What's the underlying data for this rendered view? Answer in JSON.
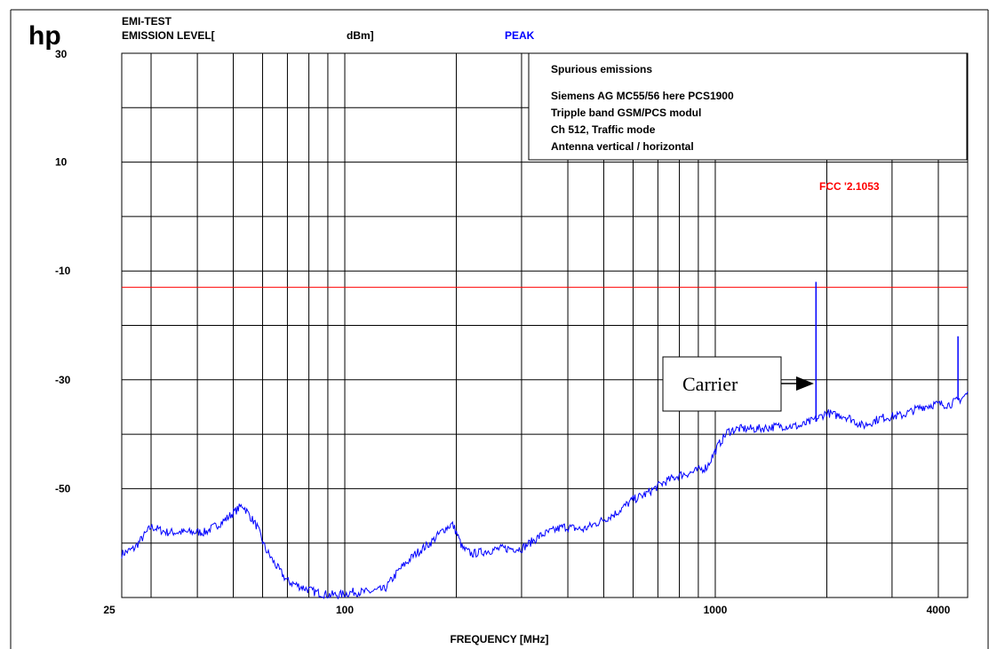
{
  "logo": "hp",
  "header": {
    "test_name": "EMI-TEST",
    "level_label": "EMISSION LEVEL[",
    "unit_label": "dBm]",
    "detector": "PEAK"
  },
  "info_box": {
    "title": "Spurious emissions",
    "lines": [
      "Siemens AG MC55/56 here PCS1900",
      "Tripple band GSM/PCS modul",
      "Ch 512, Traffic mode",
      "Antenna vertical / horizontal"
    ]
  },
  "annotation": {
    "carrier_label": "Carrier"
  },
  "colors": {
    "trace": "#0000ff",
    "limit": "#ff0000",
    "detector": "#0000ff",
    "grid": "#000000"
  },
  "chart_data": {
    "type": "line",
    "xlabel": "FREQUENCY [MHz]",
    "x_scale": "log",
    "xlim": [
      25,
      4800
    ],
    "ylim": [
      -70,
      30
    ],
    "grid": true,
    "x_ticks": [
      {
        "value": 25,
        "label": "25"
      },
      {
        "value": 100,
        "label": "100"
      },
      {
        "value": 1000,
        "label": "1000"
      },
      {
        "value": 4000,
        "label": "4000"
      }
    ],
    "y_ticks": [
      {
        "value": 30,
        "label": "30"
      },
      {
        "value": 10,
        "label": "10"
      },
      {
        "value": -10,
        "label": "-10"
      },
      {
        "value": -30,
        "label": "-30"
      },
      {
        "value": -50,
        "label": "-50"
      }
    ],
    "x_gridlines": [
      30,
      40,
      50,
      60,
      70,
      80,
      90,
      100,
      200,
      300,
      400,
      500,
      600,
      700,
      800,
      900,
      1000,
      2000,
      3000,
      4000
    ],
    "y_gridlines": [
      20,
      10,
      0,
      -10,
      -20,
      -30,
      -40,
      -50,
      -60
    ],
    "limit_line": {
      "name": "FCC '2.1053",
      "value": -13
    },
    "series": [
      {
        "x": [
          25,
          27,
          30,
          33,
          37,
          42,
          47,
          53,
          58,
          61,
          65,
          70,
          76,
          83,
          90,
          97,
          105,
          115,
          128,
          140,
          155,
          170,
          185,
          195,
          200,
          208,
          220,
          240,
          265,
          300,
          340,
          390,
          440,
          490,
          540,
          600,
          650,
          720,
          800,
          870,
          950,
          1020,
          1080,
          1150,
          1300,
          1500,
          1700,
          1900,
          2000,
          2100,
          2200,
          2300,
          2500,
          2800,
          3200,
          3600,
          3900,
          4300,
          4600,
          4800
        ],
        "y": [
          -62,
          -61,
          -57,
          -58,
          -58,
          -58,
          -56,
          -53,
          -57,
          -61,
          -64,
          -67,
          -68,
          -69,
          -69.5,
          -69.5,
          -69,
          -69,
          -68.5,
          -65,
          -62,
          -60,
          -57.5,
          -56.5,
          -58,
          -61,
          -62,
          -61.5,
          -61,
          -61,
          -58.5,
          -57,
          -57.5,
          -56,
          -54.5,
          -52,
          -51,
          -49,
          -47.5,
          -47,
          -46,
          -42,
          -39.5,
          -39,
          -39,
          -38.5,
          -38.5,
          -37,
          -36,
          -36.5,
          -36.5,
          -37,
          -38.5,
          -37,
          -36.5,
          -35,
          -34.5,
          -34.5,
          -33.5,
          -32.5
        ]
      }
    ],
    "spikes": [
      {
        "x": 1870,
        "y": -12
      },
      {
        "x": 4520,
        "y": -22
      }
    ]
  }
}
